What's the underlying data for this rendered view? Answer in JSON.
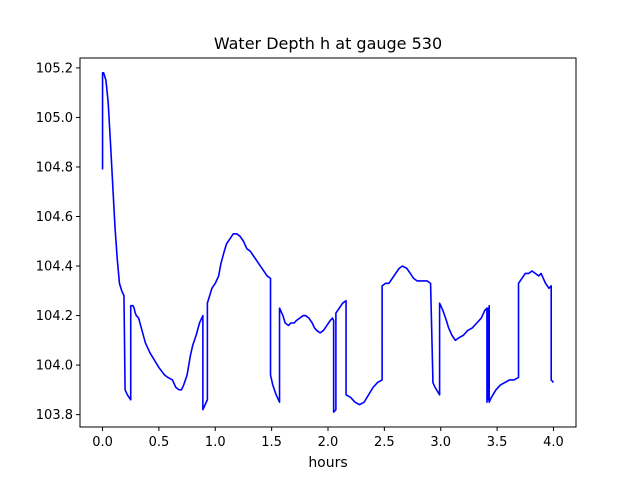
{
  "chart_data": {
    "type": "line",
    "title": "Water Depth h at gauge 530",
    "xlabel": "hours",
    "ylabel": "",
    "xlim": [
      -0.2,
      4.2
    ],
    "ylim": [
      103.75,
      105.24
    ],
    "grid": false,
    "xticks": [
      0.0,
      0.5,
      1.0,
      1.5,
      2.0,
      2.5,
      3.0,
      3.5,
      4.0
    ],
    "xtick_labels": [
      "0.0",
      "0.5",
      "1.0",
      "1.5",
      "2.0",
      "2.5",
      "3.0",
      "3.5",
      "4.0"
    ],
    "yticks": [
      103.8,
      104.0,
      104.2,
      104.4,
      104.6,
      104.8,
      105.0,
      105.2
    ],
    "ytick_labels": [
      "103.8",
      "104.0",
      "104.2",
      "104.4",
      "104.6",
      "104.8",
      "105.0",
      "105.2"
    ],
    "series": [
      {
        "color": "#0000ff",
        "x": [
          0.0,
          0.0,
          0.01,
          0.03,
          0.05,
          0.07,
          0.09,
          0.11,
          0.13,
          0.15,
          0.17,
          0.19,
          0.2,
          0.2,
          0.22,
          0.25,
          0.25,
          0.27,
          0.28,
          0.29,
          0.3,
          0.32,
          0.35,
          0.38,
          0.42,
          0.46,
          0.5,
          0.55,
          0.58,
          0.62,
          0.65,
          0.68,
          0.7,
          0.72,
          0.75,
          0.78,
          0.8,
          0.83,
          0.86,
          0.89,
          0.89,
          0.93,
          0.93,
          0.95,
          0.97,
          1.0,
          1.03,
          1.05,
          1.08,
          1.1,
          1.13,
          1.16,
          1.19,
          1.22,
          1.25,
          1.28,
          1.31,
          1.34,
          1.37,
          1.4,
          1.43,
          1.46,
          1.49,
          1.49,
          1.51,
          1.54,
          1.57,
          1.57,
          1.6,
          1.62,
          1.65,
          1.67,
          1.7,
          1.72,
          1.75,
          1.78,
          1.8,
          1.83,
          1.86,
          1.88,
          1.9,
          1.93,
          1.96,
          1.99,
          2.02,
          2.04,
          2.05,
          2.05,
          2.07,
          2.07,
          2.1,
          2.13,
          2.16,
          2.16,
          2.2,
          2.24,
          2.28,
          2.32,
          2.36,
          2.4,
          2.44,
          2.48,
          2.48,
          2.51,
          2.54,
          2.57,
          2.6,
          2.63,
          2.66,
          2.7,
          2.73,
          2.76,
          2.79,
          2.82,
          2.85,
          2.88,
          2.91,
          2.93,
          2.93,
          2.95,
          2.99,
          2.99,
          3.02,
          3.05,
          3.07,
          3.1,
          3.13,
          3.16,
          3.2,
          3.24,
          3.28,
          3.32,
          3.36,
          3.39,
          3.41,
          3.41,
          3.42,
          3.42,
          3.43,
          3.43,
          3.45,
          3.49,
          3.53,
          3.57,
          3.61,
          3.65,
          3.69,
          3.69,
          3.72,
          3.75,
          3.78,
          3.81,
          3.84,
          3.87,
          3.89,
          3.91,
          3.93,
          3.96,
          3.98,
          3.98,
          4.0
        ],
        "y": [
          104.79,
          105.18,
          105.18,
          105.15,
          105.06,
          104.9,
          104.73,
          104.56,
          104.43,
          104.33,
          104.3,
          104.28,
          103.9,
          103.9,
          103.88,
          103.86,
          104.24,
          104.24,
          104.23,
          104.21,
          104.2,
          104.19,
          104.14,
          104.09,
          104.05,
          104.02,
          103.99,
          103.96,
          103.95,
          103.94,
          103.91,
          103.9,
          103.9,
          103.92,
          103.96,
          104.04,
          104.08,
          104.12,
          104.17,
          104.2,
          103.82,
          103.86,
          104.25,
          104.28,
          104.31,
          104.33,
          104.36,
          104.41,
          104.46,
          104.49,
          104.51,
          104.53,
          104.53,
          104.52,
          104.5,
          104.47,
          104.46,
          104.44,
          104.42,
          104.4,
          104.38,
          104.36,
          104.35,
          103.96,
          103.92,
          103.88,
          103.85,
          104.23,
          104.2,
          104.17,
          104.16,
          104.17,
          104.17,
          104.18,
          104.19,
          104.2,
          104.2,
          104.19,
          104.17,
          104.15,
          104.14,
          104.13,
          104.14,
          104.16,
          104.18,
          104.19,
          104.18,
          103.81,
          103.82,
          104.21,
          104.23,
          104.25,
          104.26,
          103.88,
          103.87,
          103.85,
          103.84,
          103.85,
          103.88,
          103.91,
          103.93,
          103.94,
          104.32,
          104.33,
          104.33,
          104.35,
          104.37,
          104.39,
          104.4,
          104.39,
          104.37,
          104.35,
          104.34,
          104.34,
          104.34,
          104.34,
          104.33,
          103.95,
          103.93,
          103.91,
          103.88,
          104.25,
          104.22,
          104.18,
          104.15,
          104.12,
          104.1,
          104.11,
          104.12,
          104.14,
          104.15,
          104.17,
          104.19,
          104.22,
          104.23,
          103.85,
          104.23,
          103.86,
          104.24,
          103.85,
          103.87,
          103.9,
          103.92,
          103.93,
          103.94,
          103.94,
          103.95,
          104.33,
          104.35,
          104.37,
          104.37,
          104.38,
          104.37,
          104.36,
          104.37,
          104.35,
          104.33,
          104.31,
          104.32,
          103.94,
          103.93
        ]
      }
    ]
  }
}
